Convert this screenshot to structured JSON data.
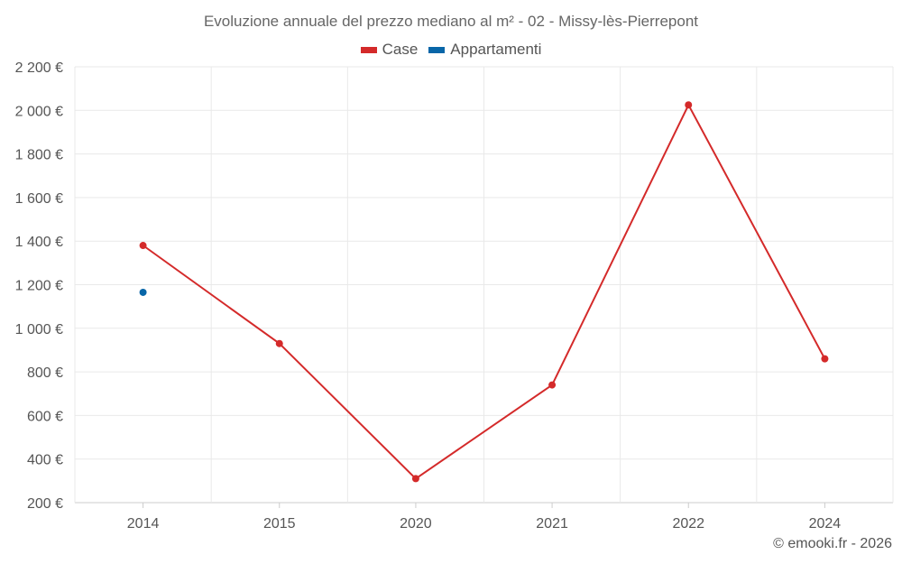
{
  "title": "Evoluzione annuale del prezzo mediano al m² - 02 - Missy-lès-Pierrepont",
  "credit": "© emooki.fr - 2026",
  "chart_data": {
    "type": "line",
    "title": "Evoluzione annuale del prezzo mediano al m² - 02 - Missy-lès-Pierrepont",
    "categories": [
      "2014",
      "2015",
      "2020",
      "2021",
      "2022",
      "2024"
    ],
    "series": [
      {
        "name": "Case",
        "color": "#d42a2a",
        "values": [
          1380,
          930,
          310,
          740,
          2025,
          860
        ]
      },
      {
        "name": "Appartamenti",
        "color": "#0866a8",
        "values": [
          1165,
          null,
          null,
          null,
          null,
          null
        ]
      }
    ],
    "yticks": [
      "200 €",
      "400 €",
      "600 €",
      "800 €",
      "1 000 €",
      "1 200 €",
      "1 400 €",
      "1 600 €",
      "1 800 €",
      "2 000 €",
      "2 200 €"
    ],
    "ylim": [
      200,
      2200
    ],
    "xlabel": "",
    "ylabel": "",
    "grid": true,
    "legend_position": "top-center"
  }
}
